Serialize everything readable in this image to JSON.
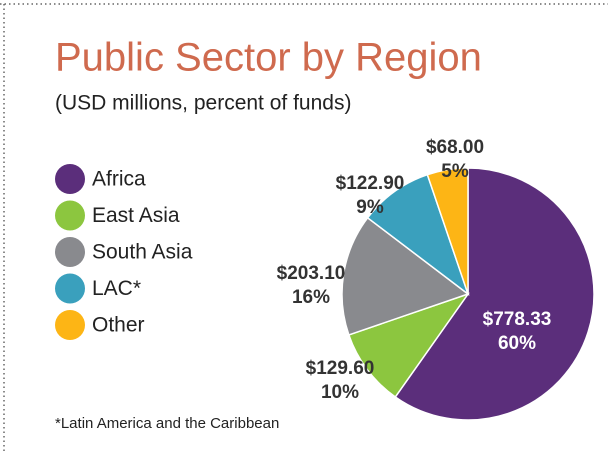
{
  "chart_data": {
    "type": "pie",
    "title": "Public Sector by Region",
    "subtitle": "(USD millions, percent of funds)",
    "categories": [
      "Africa",
      "East Asia",
      "South Asia",
      "LAC*",
      "Other"
    ],
    "values": [
      778.33,
      129.6,
      203.1,
      122.9,
      68.0
    ],
    "value_labels": [
      "$778.33",
      "$129.60",
      "$203.10",
      "$122.90",
      "$68.00"
    ],
    "percent_labels": [
      "60%",
      "10%",
      "16%",
      "9%",
      "5%"
    ],
    "colors": [
      "#5b2e7b",
      "#8cc63f",
      "#898a8e",
      "#3aa0bd",
      "#fdb515"
    ],
    "footnote": "*Latin America and the Caribbean"
  }
}
